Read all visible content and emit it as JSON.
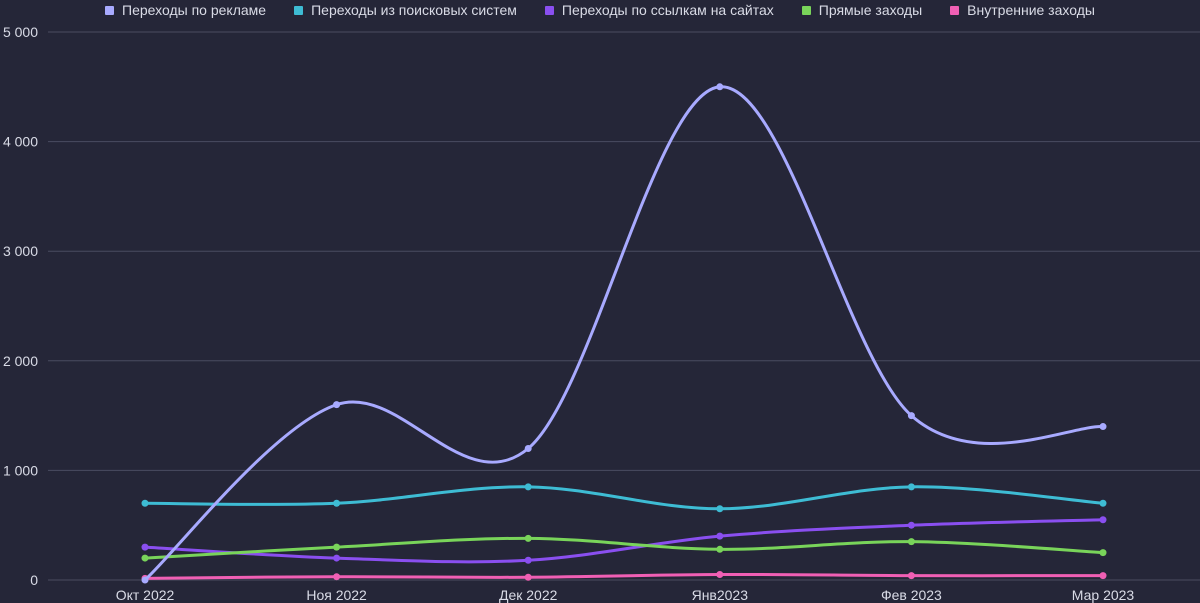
{
  "chart_data": {
    "type": "line",
    "title": "",
    "xlabel": "",
    "ylabel": "",
    "legend_position": "top",
    "grid": true,
    "ylim": [
      0,
      5000
    ],
    "yticks": [
      0,
      1000,
      2000,
      3000,
      4000,
      5000
    ],
    "ytick_labels": [
      "0",
      "1 000",
      "2 000",
      "3 000",
      "4 000",
      "5 000"
    ],
    "categories": [
      "Окт 2022",
      "Ноя 2022",
      "Дек 2022",
      "Янв2023",
      "Фев 2023",
      "Мар 2023"
    ],
    "series": [
      {
        "name": "Переходы по рекламе",
        "color": "#a8aaff",
        "values": [
          0,
          1600,
          1200,
          4500,
          1500,
          1400
        ]
      },
      {
        "name": "Переходы из поисковых систем",
        "color": "#3ebcd4",
        "values": [
          700,
          700,
          850,
          650,
          850,
          700
        ]
      },
      {
        "name": "Переходы по ссылкам на сайтах",
        "color": "#8a4ff0",
        "values": [
          300,
          200,
          180,
          400,
          500,
          550
        ]
      },
      {
        "name": "Прямые заходы",
        "color": "#79d45a",
        "values": [
          200,
          300,
          380,
          280,
          350,
          250
        ]
      },
      {
        "name": "Внутренние заходы",
        "color": "#f05fb4",
        "values": [
          15,
          30,
          25,
          50,
          40,
          40
        ]
      }
    ]
  }
}
